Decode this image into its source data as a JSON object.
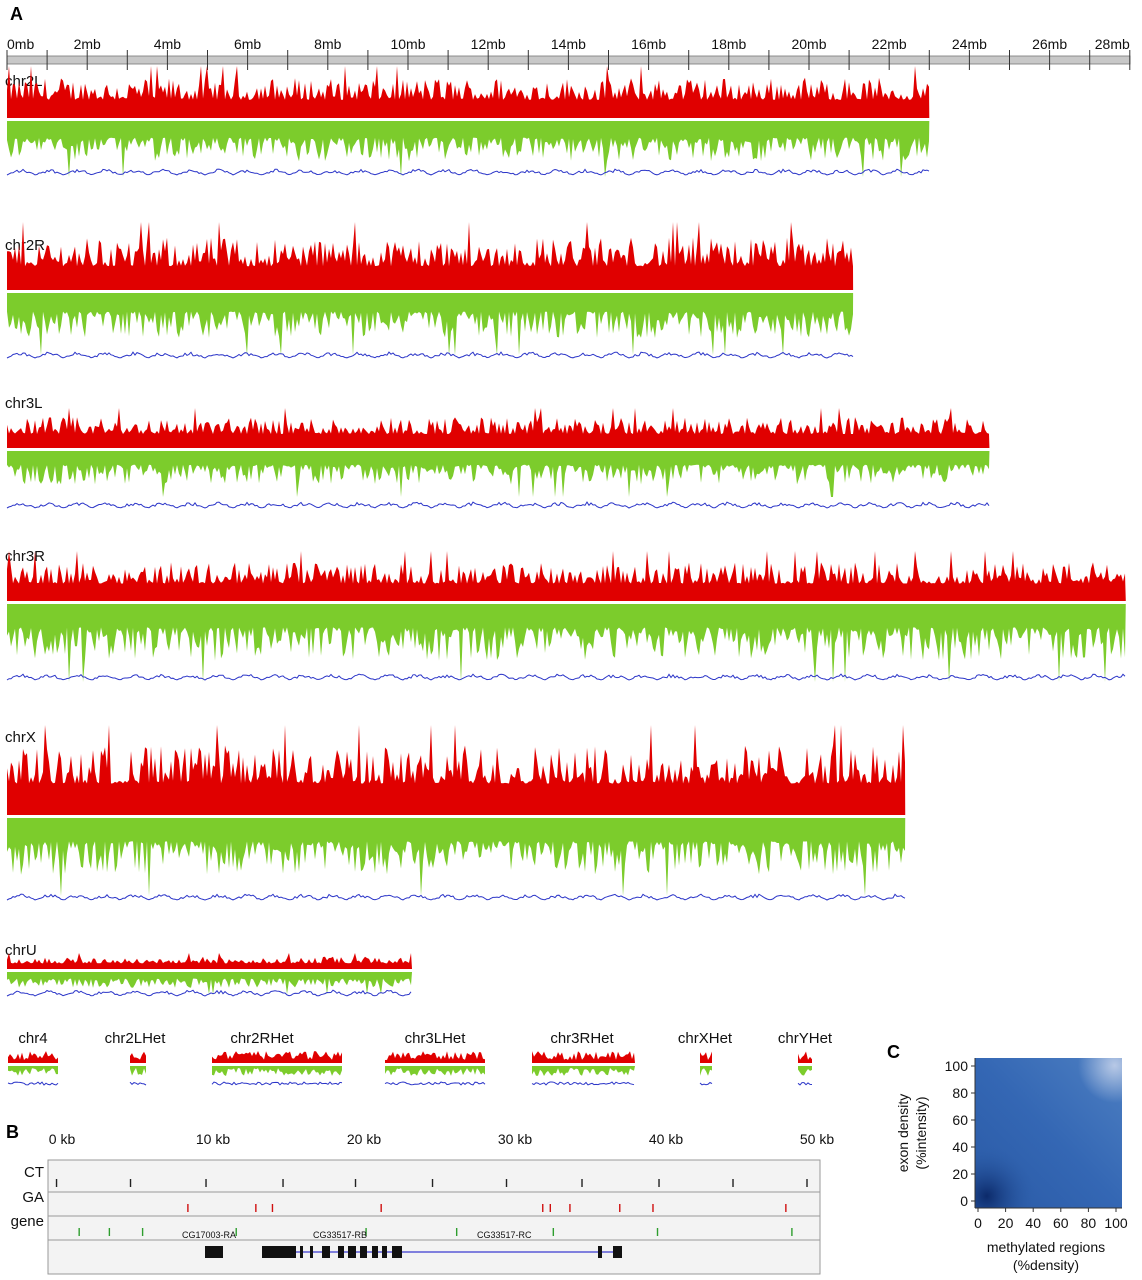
{
  "panels": {
    "a": "A",
    "b": "B",
    "c": "C"
  },
  "chart_data": [
    {
      "type": "area",
      "panel": "A",
      "scale": {
        "ticks": [
          "0mb",
          "2mb",
          "4mb",
          "6mb",
          "8mb",
          "10mb",
          "12mb",
          "14mb",
          "16mb",
          "18mb",
          "20mb",
          "22mb",
          "24mb",
          "26mb",
          "28mb"
        ],
        "tick_values_mb": [
          0,
          2,
          4,
          6,
          8,
          10,
          12,
          14,
          16,
          18,
          20,
          22,
          24,
          26,
          28
        ],
        "xlim": [
          0,
          28
        ]
      },
      "colors": {
        "top": "#e00000",
        "bottom": "#7ccc2c",
        "line": "#2b35c8"
      },
      "chromosomes": [
        {
          "name": "chr2L",
          "length_mb": 23.0
        },
        {
          "name": "chr2R",
          "length_mb": 21.1
        },
        {
          "name": "chr3L",
          "length_mb": 24.5
        },
        {
          "name": "chr3R",
          "length_mb": 27.9
        },
        {
          "name": "chrX",
          "length_mb": 22.4
        },
        {
          "name": "chrU",
          "length_mb": 10.1
        }
      ],
      "het": [
        {
          "name": "chr4"
        },
        {
          "name": "chr2LHet"
        },
        {
          "name": "chr2RHet"
        },
        {
          "name": "chr3LHet"
        },
        {
          "name": "chr3RHet"
        },
        {
          "name": "chrXHet"
        },
        {
          "name": "chrYHet"
        }
      ]
    },
    {
      "type": "track",
      "panel": "B",
      "scale": {
        "ticks": [
          "0 kb",
          "10 kb",
          "20 kb",
          "30 kb",
          "40 kb",
          "50 kb"
        ],
        "tick_values_kb": [
          0,
          10,
          20,
          30,
          40,
          50
        ],
        "xlim": [
          0,
          51
        ]
      },
      "tracks": [
        {
          "label": "CT",
          "color": "#222222",
          "positions_kb": [
            0.3,
            5.2,
            10.2,
            15.3,
            20.1,
            25.2,
            30.1,
            35.1,
            40.2,
            45.1,
            50.0
          ]
        },
        {
          "label": "GA",
          "color": "#d01010",
          "positions_kb": [
            9.0,
            13.5,
            14.6,
            21.8,
            32.5,
            33.0,
            34.3,
            37.6,
            39.8,
            48.6
          ]
        },
        {
          "label": "gene",
          "color": "#2e9e2e",
          "positions_kb": [
            1.8,
            3.8,
            6.0,
            12.2,
            20.8,
            26.8,
            33.2,
            40.1,
            49.0
          ]
        }
      ],
      "genes": [
        "CG17003-RA",
        "CG33517-RB",
        "CG33517-RC"
      ]
    },
    {
      "type": "heatmap",
      "panel": "C",
      "xlabel": "methylated regions",
      "xlabel2": "(%density)",
      "ylabel": "exon density",
      "ylabel2": "(%intensity)",
      "xticks": [
        "0",
        "20",
        "40",
        "60",
        "80",
        "100"
      ],
      "yticks": [
        "0",
        "20",
        "40",
        "60",
        "80",
        "100"
      ],
      "xlim": [
        0,
        100
      ],
      "ylim": [
        0,
        100
      ],
      "color": "#2f63b0"
    }
  ]
}
